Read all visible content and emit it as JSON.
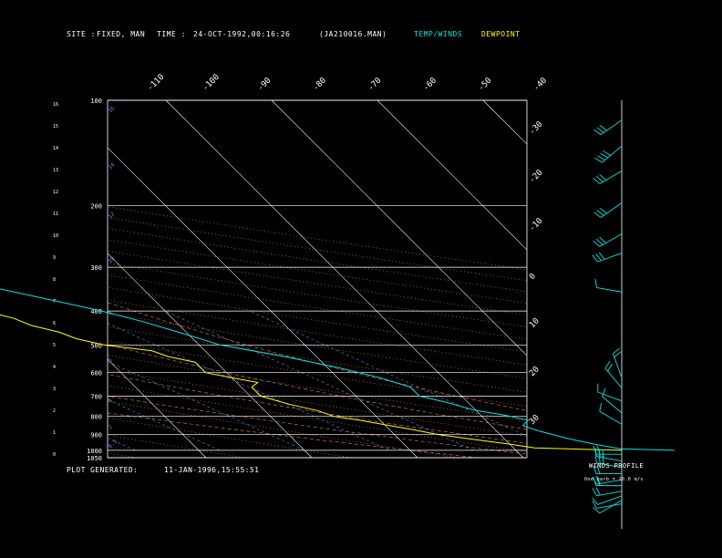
{
  "header": {
    "site_label": "SITE :",
    "site_value": "FIXED, MAN",
    "time_label": "TIME :",
    "time_value": "24-OCT-1992,00:16:26",
    "file_name": "(JA210016.MAN)",
    "temp_legend": "TEMP/WINDS",
    "dew_legend": "DEWPOINT"
  },
  "footer": {
    "generated_label": "PLOT GENERATED:",
    "generated_value": "11-JAN-1996,15:55:51",
    "winds_title": "WINDS PROFILE",
    "winds_note": "One barb = 10.0 m/s"
  },
  "colors": {
    "background": "#000000",
    "grid": "#ffffff",
    "temperature": "#00e5e5",
    "dewpoint": "#ffff00",
    "wind": "#00e5e5",
    "temp_legend": "#00e5e5",
    "dew_legend": "#ffff00",
    "dry_adiabat": "#c87850",
    "moist_adiabat": "#e08060",
    "mixing_ratio": "#5a8adc",
    "altitude_label": "#5a8adc"
  },
  "chart_data": {
    "type": "skew-t",
    "x_axis": "temperature",
    "y_axis": "pressure",
    "y_scale": "log",
    "ylim": [
      1050,
      100
    ],
    "xlim": [
      -40,
      30
    ],
    "pressure_labels": [
      "100",
      "200",
      "300",
      "400",
      "500",
      "600",
      "700",
      "800",
      "900",
      "1000",
      "1050"
    ],
    "pressure_levels": [
      100,
      200,
      300,
      400,
      500,
      600,
      700,
      800,
      900,
      1000,
      1050
    ],
    "left_height_labels": [
      "16",
      "15",
      "14",
      "13",
      "12",
      "11",
      "10",
      "9",
      "8",
      "7",
      "6",
      "5",
      "4",
      "3",
      "2",
      "1",
      "0"
    ],
    "top_isotherm_labels": [
      "-110",
      "-100",
      "-90",
      "-80",
      "-70",
      "-60",
      "-50",
      "-40"
    ],
    "right_isotherm_labels": [
      "-30",
      "-20",
      "-10",
      "0",
      "10",
      "20",
      "30"
    ],
    "altitude_labels": [
      "16",
      "14",
      "12",
      "10",
      "8",
      "6",
      "4",
      "2",
      "0.5"
    ],
    "series": [
      {
        "name": "TEMP/WINDS",
        "pressure": [
          1000,
          990,
          960,
          925,
          880,
          850,
          820,
          790,
          770,
          730,
          700,
          660,
          620,
          580,
          540,
          500,
          470,
          430,
          400,
          370,
          330,
          300,
          270,
          240,
          215,
          200,
          180,
          160,
          140,
          125,
          115,
          108,
          104,
          102,
          100
        ],
        "temperature": [
          25.0,
          20.0,
          18.0,
          16.0,
          14.0,
          13.0,
          14.0,
          12.0,
          10.0,
          8.0,
          6.0,
          6.0,
          4.0,
          1.0,
          -3.0,
          -8.0,
          -10.0,
          -13.0,
          -16.0,
          -20.0,
          -26.0,
          -31.0,
          -37.0,
          -43.0,
          -49.0,
          -53.0,
          -58.0,
          -64.0,
          -70.0,
          -74.0,
          -76.0,
          -72.0,
          -64.0,
          -58.0,
          -52.0
        ]
      },
      {
        "name": "DEWPOINT",
        "pressure": [
          1000,
          985,
          960,
          940,
          920,
          900,
          870,
          845,
          820,
          800,
          770,
          740,
          720,
          700,
          680,
          660,
          640,
          620,
          600,
          580,
          560,
          540,
          520,
          500,
          480,
          460,
          440,
          420,
          400,
          380,
          360,
          340,
          320,
          300,
          285,
          270,
          255,
          240,
          225,
          210,
          200,
          190,
          180,
          170,
          160,
          150,
          140,
          130,
          122,
          115,
          108,
          104,
          102,
          100
        ],
        "temperature": [
          20.0,
          12.0,
          10.0,
          8.0,
          6.0,
          4.0,
          2.0,
          0.0,
          -2.0,
          -4.0,
          -5.0,
          -7.0,
          -8.0,
          -9.0,
          -9.0,
          -9.0,
          -8.0,
          -10.0,
          -12.0,
          -12.0,
          -12.0,
          -14.0,
          -15.0,
          -19.0,
          -21.0,
          -22.0,
          -24.0,
          -25.0,
          -27.0,
          -30.0,
          -32.0,
          -35.0,
          -38.0,
          -42.0,
          -47.0,
          -52.0,
          -57.0,
          -61.0,
          -67.0,
          -70.0,
          -73.0,
          -72.0,
          -70.0,
          -72.0,
          -75.0,
          -78.0,
          -82.0,
          -86.0,
          -90.0,
          -96.0,
          -98.0,
          -88.0,
          -80.0,
          -70.0
        ]
      }
    ],
    "winds": [
      {
        "pressure": 1010,
        "speed": 12,
        "direction": 260
      },
      {
        "pressure": 990,
        "speed": 10,
        "direction": 240
      },
      {
        "pressure": 965,
        "speed": 14,
        "direction": 250
      },
      {
        "pressure": 940,
        "speed": 16,
        "direction": 260
      },
      {
        "pressure": 910,
        "speed": 20,
        "direction": 270
      },
      {
        "pressure": 880,
        "speed": 18,
        "direction": 260
      },
      {
        "pressure": 850,
        "speed": 22,
        "direction": 270
      },
      {
        "pressure": 820,
        "speed": 26,
        "direction": 280
      },
      {
        "pressure": 790,
        "speed": 30,
        "direction": 280
      },
      {
        "pressure": 760,
        "speed": 24,
        "direction": 270
      },
      {
        "pressure": 640,
        "speed": 12,
        "direction": 300
      },
      {
        "pressure": 600,
        "speed": 10,
        "direction": 310
      },
      {
        "pressure": 560,
        "speed": 14,
        "direction": 290
      },
      {
        "pressure": 520,
        "speed": 16,
        "direction": 320
      },
      {
        "pressure": 490,
        "speed": 20,
        "direction": 340
      },
      {
        "pressure": 300,
        "speed": 8,
        "direction": 280
      },
      {
        "pressure": 240,
        "speed": 32,
        "direction": 250
      },
      {
        "pressure": 215,
        "speed": 28,
        "direction": 240
      },
      {
        "pressure": 180,
        "speed": 26,
        "direction": 235
      },
      {
        "pressure": 150,
        "speed": 34,
        "direction": 240
      },
      {
        "pressure": 130,
        "speed": 36,
        "direction": 230
      },
      {
        "pressure": 112,
        "speed": 30,
        "direction": 235
      }
    ]
  }
}
